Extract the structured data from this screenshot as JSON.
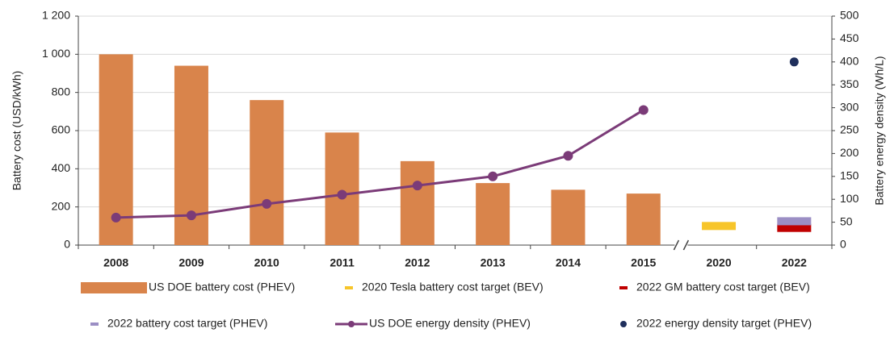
{
  "chart_data": {
    "type": "bar",
    "categories": [
      "2008",
      "2009",
      "2010",
      "2011",
      "2012",
      "2013",
      "2014",
      "2015",
      "2020",
      "2022"
    ],
    "ylabel": "Battery cost (USD/kWh)",
    "y2label": "Battery energy density (Wh/L)",
    "ylim": [
      0,
      1200
    ],
    "yticks": [
      0,
      200,
      400,
      600,
      800,
      {
        "value": 1000,
        "label": "1 000"
      },
      {
        "value": 1200,
        "label": "1 200"
      }
    ],
    "y2lim": [
      0,
      500
    ],
    "y2ticks": [
      0,
      50,
      100,
      150,
      200,
      250,
      300,
      350,
      400,
      450,
      500
    ],
    "grid": true,
    "legend": "bottom",
    "series": [
      {
        "name": "US DOE battery cost (PHEV)",
        "type": "bar",
        "color": "#d9844b",
        "values": [
          1000,
          940,
          760,
          590,
          440,
          325,
          290,
          270,
          null,
          null
        ]
      },
      {
        "name": "2020 Tesla battery cost target (BEV)",
        "type": "dash",
        "color": "#f7c52a",
        "values": [
          null,
          null,
          null,
          null,
          null,
          null,
          null,
          null,
          100,
          null
        ]
      },
      {
        "name": "2022 GM battery cost target (BEV)",
        "type": "dash",
        "color": "#c00000",
        "values": [
          null,
          null,
          null,
          null,
          null,
          null,
          null,
          null,
          null,
          90
        ]
      },
      {
        "name": "2022 battery cost target (PHEV)",
        "type": "dash",
        "color": "#9b8ec4",
        "values": [
          null,
          null,
          null,
          null,
          null,
          null,
          null,
          null,
          null,
          125
        ]
      },
      {
        "name": "US DOE energy density (PHEV)",
        "type": "line",
        "axis": "y2",
        "color": "#7b3b78",
        "values": [
          60,
          65,
          90,
          110,
          130,
          150,
          195,
          295,
          null,
          null
        ]
      },
      {
        "name": "2022 energy density target (PHEV)",
        "type": "dot",
        "axis": "y2",
        "color": "#1f2f5c",
        "values": [
          null,
          null,
          null,
          null,
          null,
          null,
          null,
          null,
          null,
          400
        ]
      }
    ]
  }
}
